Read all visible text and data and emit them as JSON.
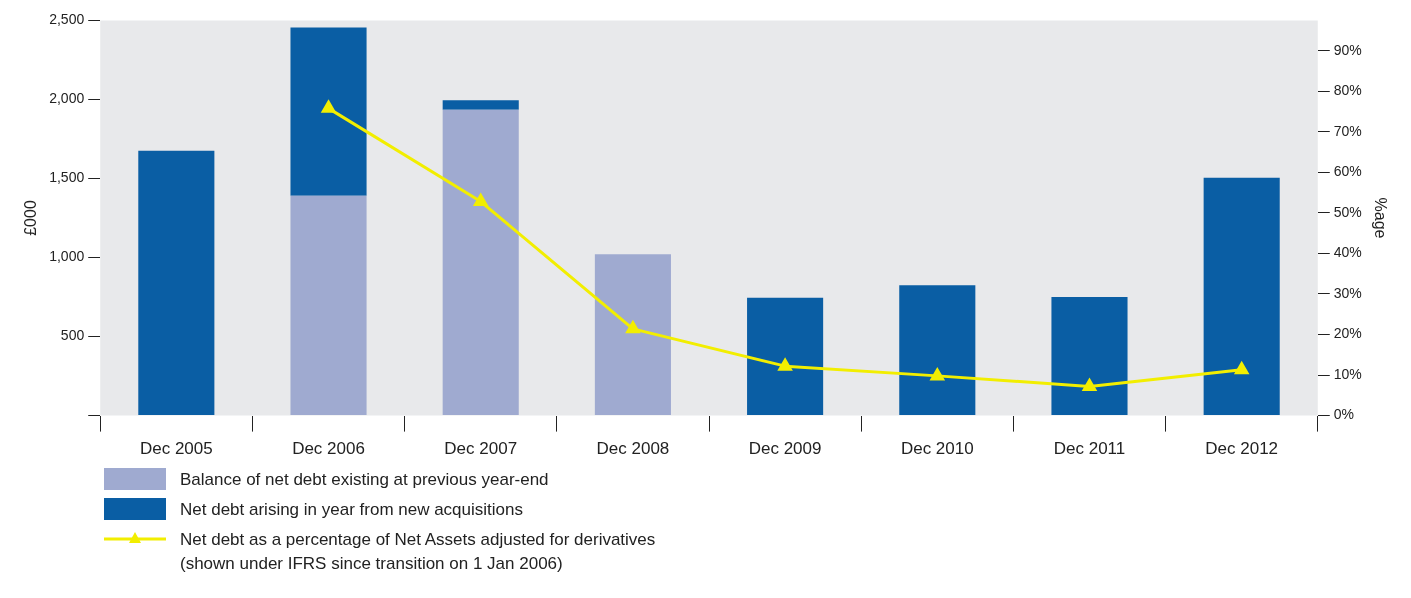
{
  "chart_data": {
    "type": "bar",
    "stacked": true,
    "categories": [
      "Dec 2005",
      "Dec 2006",
      "Dec 2007",
      "Dec 2008",
      "Dec 2009",
      "Dec 2010",
      "Dec 2011",
      "Dec 2012"
    ],
    "series": [
      {
        "name": "Balance of net debt existing at previous year-end",
        "color": "#9faad0",
        "values": [
          0,
          1390,
          1935,
          1020,
          0,
          0,
          0,
          0
        ]
      },
      {
        "name": "Net debt arising in year from new acquisitions",
        "color": "#0a5ea4",
        "values": [
          1675,
          1065,
          60,
          0,
          745,
          825,
          750,
          1505
        ]
      },
      {
        "name": "Net debt as a percentage of Net Assets adjusted for derivatives (shown under IFRS since transition on 1 Jan 2006)",
        "type": "line",
        "axis": "y2",
        "color": "#f2ee00",
        "marker": "triangle",
        "line_style": "solid",
        "values": [
          null,
          75.8,
          52.8,
          21.4,
          12.2,
          9.8,
          7.2,
          11.3
        ]
      }
    ],
    "ylabel": "£000",
    "y2label": "%age",
    "ylim": [
      0,
      2500
    ],
    "yticks": [
      {
        "value": 0,
        "label": null
      },
      500,
      {
        "value": 1000,
        "label": "1,000"
      },
      {
        "value": 1500,
        "label": "1,500"
      },
      {
        "value": 2000,
        "label": "2,000"
      },
      {
        "value": 2500,
        "label": "2,500"
      }
    ],
    "y2lim": [
      0,
      97.5
    ],
    "y2ticks": [
      {
        "value": 0,
        "label": "0%"
      },
      {
        "value": 10,
        "label": "10%"
      },
      {
        "value": 20,
        "label": "20%"
      },
      {
        "value": 30,
        "label": "30%"
      },
      {
        "value": 40,
        "label": "40%"
      },
      {
        "value": 50,
        "label": "50%"
      },
      {
        "value": 60,
        "label": "60%"
      },
      {
        "value": 70,
        "label": "70%"
      },
      {
        "value": 80,
        "label": "80%"
      },
      {
        "value": 90,
        "label": "90%"
      }
    ],
    "legend": "bottom"
  }
}
